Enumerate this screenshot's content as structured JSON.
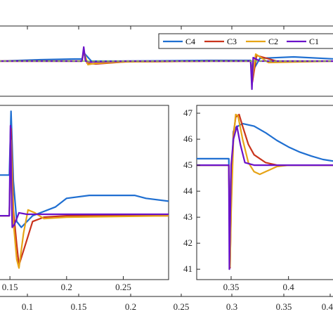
{
  "chart_data": [
    {
      "type": "line",
      "panel": "top-overview",
      "xlim": [
        0.05,
        0.45
      ],
      "ylim": [
        40,
        50
      ],
      "legend": {
        "placement": "top-right",
        "entries": [
          "C4",
          "C3",
          "C2",
          "C1"
        ]
      },
      "series": [
        {
          "name": "C4",
          "color": "#1f6fd1",
          "x": [
            0.05,
            0.1,
            0.14,
            0.149,
            0.151,
            0.16,
            0.2,
            0.3,
            0.349,
            0.351,
            0.36,
            0.4,
            0.45
          ],
          "y": [
            45.0,
            45.2,
            45.3,
            45.3,
            46.2,
            45.0,
            45.0,
            45.1,
            45.1,
            43.5,
            45.4,
            45.6,
            45.3
          ]
        },
        {
          "name": "C3",
          "color": "#c9341c",
          "x": [
            0.05,
            0.1,
            0.149,
            0.151,
            0.155,
            0.165,
            0.2,
            0.3,
            0.349,
            0.351,
            0.356,
            0.38,
            0.45
          ],
          "y": [
            45.0,
            45.0,
            45.0,
            46.5,
            44.7,
            44.6,
            44.9,
            45.0,
            45.0,
            42.0,
            45.8,
            45.0,
            45.0
          ]
        },
        {
          "name": "C2",
          "color": "#e6a417",
          "x": [
            0.05,
            0.1,
            0.149,
            0.151,
            0.156,
            0.165,
            0.2,
            0.3,
            0.349,
            0.351,
            0.355,
            0.37,
            0.45
          ],
          "y": [
            45.0,
            45.0,
            45.0,
            46.4,
            44.5,
            44.7,
            44.9,
            45.0,
            45.0,
            42.5,
            46.0,
            44.8,
            45.0
          ]
        },
        {
          "name": "C1",
          "color": "#6a12c9",
          "x": [
            0.05,
            0.1,
            0.149,
            0.151,
            0.153,
            0.16,
            0.2,
            0.3,
            0.349,
            0.3505,
            0.352,
            0.36,
            0.45
          ],
          "y": [
            45.0,
            45.0,
            45.0,
            47.0,
            45.0,
            44.9,
            45.0,
            45.0,
            45.0,
            41.0,
            45.5,
            45.0,
            45.0
          ]
        }
      ],
      "reference": {
        "color": "#8ec63f",
        "y": 45.0
      }
    },
    {
      "type": "line",
      "panel": "zoom-left",
      "xlim": [
        0.14,
        0.29
      ],
      "xticks": [
        "0.15",
        "0.2",
        "0.25"
      ],
      "series": [
        {
          "name": "C4",
          "color": "#1f6fd1",
          "x": [
            0.14,
            0.148,
            0.1495,
            0.151,
            0.153,
            0.156,
            0.16,
            0.17,
            0.19,
            0.2,
            0.22,
            0.26,
            0.27,
            0.29
          ],
          "y": [
            45.2,
            45.2,
            45.2,
            47.4,
            45.0,
            43.6,
            43.4,
            43.8,
            44.1,
            44.4,
            44.5,
            44.5,
            44.4,
            44.3
          ]
        },
        {
          "name": "C3",
          "color": "#c9341c",
          "x": [
            0.14,
            0.148,
            0.1495,
            0.151,
            0.153,
            0.156,
            0.158,
            0.162,
            0.17,
            0.18,
            0.2,
            0.29
          ],
          "y": [
            43.8,
            43.8,
            43.8,
            46.8,
            44.0,
            42.8,
            42.1,
            42.6,
            43.6,
            43.75,
            43.8,
            43.8
          ]
        },
        {
          "name": "C2",
          "color": "#e6a417",
          "x": [
            0.14,
            0.148,
            0.1495,
            0.151,
            0.153,
            0.156,
            0.158,
            0.162,
            0.166,
            0.172,
            0.18,
            0.2,
            0.29
          ],
          "y": [
            43.8,
            43.8,
            43.8,
            46.4,
            43.6,
            42.3,
            42.0,
            43.2,
            44.0,
            43.9,
            43.7,
            43.75,
            43.8
          ]
        },
        {
          "name": "C1",
          "color": "#6a12c9",
          "x": [
            0.14,
            0.148,
            0.1495,
            0.1505,
            0.152,
            0.154,
            0.158,
            0.165,
            0.2,
            0.29
          ],
          "y": [
            43.8,
            43.8,
            43.8,
            46.9,
            43.4,
            43.5,
            43.9,
            43.85,
            43.85,
            43.85
          ]
        }
      ]
    },
    {
      "type": "line",
      "panel": "zoom-right",
      "xlim": [
        0.32,
        0.44
      ],
      "ylim": [
        40.6,
        47.3
      ],
      "xticks": [
        "0.35",
        "0.4"
      ],
      "yticks": [
        "41",
        "42",
        "43",
        "44",
        "45",
        "46",
        "47"
      ],
      "series": [
        {
          "name": "C4",
          "color": "#1f6fd1",
          "x": [
            0.32,
            0.33,
            0.347,
            0.348,
            0.349,
            0.35,
            0.352,
            0.354,
            0.356,
            0.36,
            0.37,
            0.38,
            0.39,
            0.4,
            0.41,
            0.42,
            0.43,
            0.44
          ],
          "y": [
            45.25,
            45.25,
            45.25,
            45.25,
            41.3,
            44.2,
            46.3,
            46.45,
            46.5,
            46.6,
            46.5,
            46.25,
            45.95,
            45.7,
            45.5,
            45.35,
            45.22,
            45.15
          ]
        },
        {
          "name": "C3",
          "color": "#c9341c",
          "x": [
            0.32,
            0.347,
            0.348,
            0.349,
            0.35,
            0.352,
            0.354,
            0.357,
            0.36,
            0.365,
            0.37,
            0.38,
            0.39,
            0.4,
            0.44
          ],
          "y": [
            45.0,
            45.0,
            45.0,
            41.05,
            43.5,
            46.2,
            46.85,
            46.95,
            46.5,
            45.8,
            45.4,
            45.1,
            45.0,
            45.0,
            45.0
          ]
        },
        {
          "name": "C2",
          "color": "#e6a417",
          "x": [
            0.32,
            0.347,
            0.348,
            0.349,
            0.35,
            0.352,
            0.354,
            0.356,
            0.36,
            0.365,
            0.37,
            0.375,
            0.38,
            0.39,
            0.4,
            0.44
          ],
          "y": [
            45.0,
            45.0,
            45.0,
            41.1,
            43.2,
            46.0,
            46.95,
            46.9,
            46.0,
            45.1,
            44.75,
            44.65,
            44.75,
            44.95,
            45.0,
            45.0
          ]
        },
        {
          "name": "C1",
          "color": "#6a12c9",
          "x": [
            0.32,
            0.347,
            0.348,
            0.3485,
            0.349,
            0.35,
            0.352,
            0.355,
            0.358,
            0.362,
            0.37,
            0.44
          ],
          "y": [
            45.0,
            45.0,
            45.0,
            41.0,
            42.5,
            45.0,
            46.0,
            46.5,
            45.8,
            45.1,
            45.0,
            45.0
          ]
        }
      ]
    }
  ],
  "bottom_axis": {
    "ticks": [
      "0.1",
      "0.15",
      "0.2",
      "0.25",
      "0.3",
      "0.35",
      "0.4"
    ]
  }
}
